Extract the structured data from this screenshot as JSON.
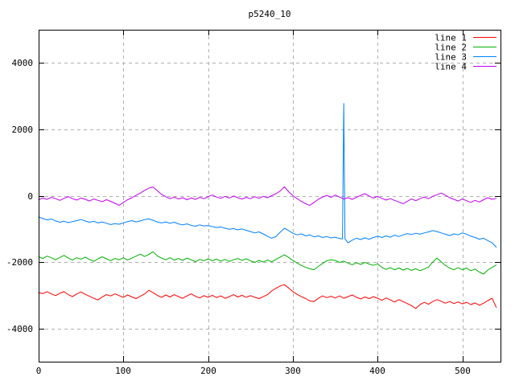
{
  "chart_data": {
    "type": "line",
    "title": "p5240_10",
    "xlabel": "",
    "ylabel": "",
    "xlim": [
      0,
      545
    ],
    "ylim": [
      -5000,
      5000
    ],
    "xticks": [
      0,
      100,
      200,
      300,
      400,
      500
    ],
    "yticks": [
      -4000,
      -2000,
      0,
      2000,
      4000
    ],
    "grid": true,
    "legend_position": "top-right-inside",
    "colors": {
      "background": "#ffffff",
      "border": "#000000",
      "grid": "#b0b0b0",
      "text": "#000000"
    },
    "x_start": 0,
    "x_step": 5,
    "series": [
      {
        "name": "line 1",
        "color": "#ff0000",
        "values": [
          -2920,
          -2950,
          -2890,
          -2960,
          -3010,
          -2940,
          -2890,
          -2980,
          -3040,
          -2960,
          -2900,
          -2970,
          -3030,
          -3090,
          -3140,
          -3050,
          -2980,
          -3020,
          -2960,
          -3010,
          -3060,
          -2990,
          -3050,
          -3100,
          -3030,
          -2960,
          -2850,
          -2920,
          -3000,
          -3060,
          -2990,
          -3050,
          -2980,
          -3040,
          -3090,
          -3020,
          -2960,
          -3030,
          -3080,
          -3010,
          -3060,
          -3000,
          -3070,
          -3020,
          -3090,
          -3040,
          -2980,
          -3050,
          -3000,
          -3060,
          -3010,
          -3060,
          -3100,
          -3040,
          -2980,
          -2870,
          -2790,
          -2720,
          -2680,
          -2780,
          -2890,
          -2970,
          -3040,
          -3100,
          -3170,
          -3190,
          -3090,
          -3020,
          -3070,
          -3030,
          -3080,
          -3020,
          -3090,
          -3040,
          -2990,
          -3060,
          -3110,
          -3050,
          -3100,
          -3040,
          -3090,
          -3150,
          -3080,
          -3140,
          -3200,
          -3130,
          -3190,
          -3250,
          -3310,
          -3400,
          -3280,
          -3210,
          -3270,
          -3190,
          -3130,
          -3180,
          -3240,
          -3190,
          -3250,
          -3200,
          -3260,
          -3210,
          -3280,
          -3230,
          -3300,
          -3240,
          -3160,
          -3090,
          -3360
        ]
      },
      {
        "name": "line 2",
        "color": "#00b000",
        "values": [
          -1840,
          -1890,
          -1820,
          -1870,
          -1930,
          -1860,
          -1800,
          -1880,
          -1940,
          -1870,
          -1910,
          -1850,
          -1920,
          -1980,
          -1900,
          -1840,
          -1900,
          -1960,
          -1890,
          -1930,
          -1870,
          -1940,
          -1880,
          -1820,
          -1760,
          -1830,
          -1770,
          -1690,
          -1810,
          -1880,
          -1930,
          -1870,
          -1940,
          -1890,
          -1950,
          -1880,
          -1930,
          -1990,
          -1920,
          -1960,
          -1900,
          -1960,
          -1910,
          -1970,
          -1920,
          -1980,
          -1930,
          -1890,
          -1950,
          -1900,
          -1960,
          -2010,
          -1950,
          -2000,
          -1940,
          -1990,
          -1920,
          -1850,
          -1780,
          -1860,
          -1950,
          -2030,
          -2100,
          -2160,
          -2200,
          -2230,
          -2130,
          -2040,
          -1960,
          -1930,
          -1950,
          -2010,
          -1970,
          -2030,
          -2080,
          -2020,
          -2070,
          -2010,
          -2060,
          -2100,
          -2050,
          -2160,
          -2220,
          -2170,
          -2230,
          -2180,
          -2240,
          -2190,
          -2250,
          -2200,
          -2260,
          -2210,
          -2150,
          -2000,
          -1880,
          -1990,
          -2100,
          -2180,
          -2230,
          -2170,
          -2230,
          -2180,
          -2260,
          -2210,
          -2300,
          -2360,
          -2240,
          -2160,
          -2090
        ]
      },
      {
        "name": "line 3",
        "color": "#0080ff",
        "spike": {
          "x": 360,
          "y": 2780,
          "half_width": 1.5
        },
        "values": [
          -640,
          -690,
          -730,
          -700,
          -760,
          -800,
          -770,
          -810,
          -780,
          -750,
          -720,
          -760,
          -800,
          -770,
          -820,
          -790,
          -830,
          -870,
          -840,
          -860,
          -820,
          -780,
          -750,
          -790,
          -760,
          -720,
          -700,
          -740,
          -790,
          -820,
          -790,
          -830,
          -800,
          -850,
          -880,
          -850,
          -890,
          -920,
          -880,
          -910,
          -900,
          -930,
          -960,
          -940,
          -980,
          -1010,
          -990,
          -1030,
          -1000,
          -1040,
          -1080,
          -1120,
          -1090,
          -1150,
          -1220,
          -1280,
          -1230,
          -1100,
          -980,
          -1050,
          -1130,
          -1180,
          -1150,
          -1210,
          -1180,
          -1240,
          -1210,
          -1260,
          -1230,
          -1270,
          -1250,
          -1290,
          -1300,
          -1420,
          -1340,
          -1280,
          -1320,
          -1270,
          -1310,
          -1260,
          -1220,
          -1260,
          -1210,
          -1250,
          -1190,
          -1230,
          -1180,
          -1140,
          -1170,
          -1130,
          -1160,
          -1120,
          -1090,
          -1050,
          -1080,
          -1120,
          -1160,
          -1200,
          -1150,
          -1180,
          -1120,
          -1160,
          -1220,
          -1260,
          -1310,
          -1280,
          -1350,
          -1420,
          -1550
        ]
      },
      {
        "name": "line 4",
        "color": "#c000f0",
        "values": [
          -120,
          -70,
          -110,
          -50,
          -90,
          -140,
          -80,
          -30,
          -90,
          -130,
          -70,
          -110,
          -160,
          -100,
          -140,
          -180,
          -120,
          -170,
          -230,
          -290,
          -200,
          -120,
          -60,
          10,
          80,
          160,
          230,
          260,
          150,
          40,
          -30,
          -90,
          -40,
          -100,
          -60,
          -120,
          -70,
          -110,
          -50,
          -90,
          -30,
          20,
          -40,
          -80,
          -20,
          -70,
          -10,
          -60,
          -100,
          -50,
          -90,
          -30,
          -80,
          -20,
          -60,
          0,
          60,
          140,
          270,
          120,
          0,
          -90,
          -170,
          -240,
          -290,
          -200,
          -110,
          -40,
          10,
          -50,
          20,
          -40,
          -100,
          -60,
          -110,
          -50,
          10,
          60,
          -10,
          -70,
          -20,
          -80,
          -130,
          -90,
          -140,
          -190,
          -240,
          -170,
          -100,
          -150,
          -90,
          -40,
          -90,
          -20,
          30,
          80,
          20,
          -60,
          -110,
          -160,
          -100,
          -150,
          -200,
          -140,
          -190,
          -120,
          -60,
          -110,
          -80
        ]
      }
    ]
  }
}
